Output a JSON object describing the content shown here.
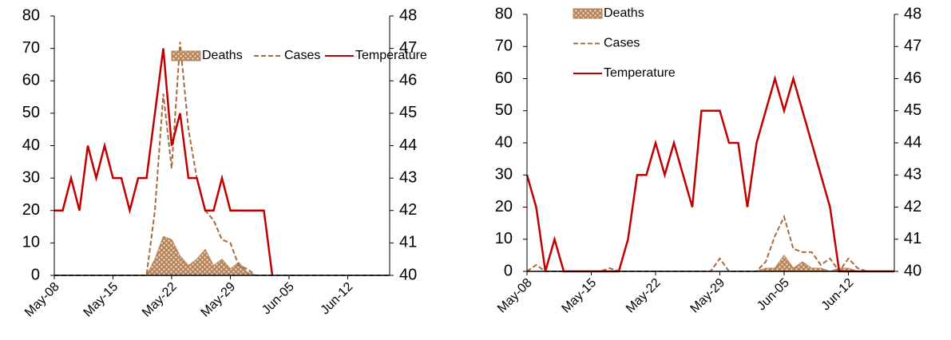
{
  "chart_data": [
    {
      "type": "line",
      "legend": "top",
      "categories": [
        "May-08",
        null,
        null,
        null,
        null,
        null,
        null,
        "May-15",
        null,
        null,
        null,
        null,
        null,
        null,
        "May-22",
        null,
        null,
        null,
        null,
        null,
        null,
        "May-29",
        null,
        null,
        null,
        null,
        null,
        null,
        "Jun-05",
        null,
        null,
        null,
        null,
        null,
        null,
        "Jun-12",
        null,
        null,
        null,
        null,
        null
      ],
      "ylim": [
        0,
        80
      ],
      "yticks": [
        0,
        10,
        20,
        30,
        40,
        50,
        60,
        70,
        80
      ],
      "y2lim": [
        40,
        48
      ],
      "y2ticks": [
        40,
        41,
        42,
        43,
        44,
        45,
        46,
        47,
        48
      ],
      "series": [
        {
          "name": "Deaths",
          "kind": "area",
          "color": "#b5835a",
          "values": [
            0,
            0,
            0,
            0,
            0,
            0,
            0,
            0,
            0,
            0,
            0,
            0,
            5,
            12,
            11,
            6,
            3,
            5,
            8,
            3,
            5,
            2,
            4,
            1,
            0,
            0,
            0,
            0,
            0,
            0,
            0,
            0,
            0,
            0,
            0,
            0,
            0,
            0,
            0,
            0,
            0
          ]
        },
        {
          "name": "Cases",
          "kind": "dashed",
          "color": "#a86b3c",
          "values": [
            0,
            0,
            0,
            0,
            0,
            0,
            0,
            0,
            0,
            0,
            0,
            0,
            20,
            56,
            33,
            72,
            45,
            30,
            20,
            17,
            11,
            10,
            3,
            2,
            0,
            0,
            0,
            0,
            0,
            0,
            0,
            0,
            0,
            0,
            0,
            0,
            0,
            0,
            0,
            0,
            0
          ]
        },
        {
          "name": "Temperature",
          "kind": "solid",
          "color": "#c00000",
          "axis": "y2",
          "values": [
            42,
            42,
            43,
            42,
            44,
            43,
            44,
            43,
            43,
            42,
            43,
            43,
            45,
            47,
            44,
            45,
            43,
            43,
            42,
            42,
            43,
            42,
            42,
            42,
            42,
            42,
            40,
            null,
            null,
            null,
            null,
            null,
            null,
            null,
            null,
            null,
            null,
            null,
            null,
            null,
            null
          ]
        }
      ]
    },
    {
      "type": "line",
      "legend": "top-left",
      "categories": [
        "May-08",
        null,
        null,
        null,
        null,
        null,
        null,
        "May-15",
        null,
        null,
        null,
        null,
        null,
        null,
        "May-22",
        null,
        null,
        null,
        null,
        null,
        null,
        "May-29",
        null,
        null,
        null,
        null,
        null,
        null,
        "Jun-05",
        null,
        null,
        null,
        null,
        null,
        null,
        "Jun-12",
        null,
        null,
        null,
        null,
        null
      ],
      "ylim": [
        0,
        80
      ],
      "yticks": [
        0,
        10,
        20,
        30,
        40,
        50,
        60,
        70,
        80
      ],
      "y2lim": [
        40,
        48
      ],
      "y2ticks": [
        40,
        41,
        42,
        43,
        44,
        45,
        46,
        47,
        48
      ],
      "series": [
        {
          "name": "Deaths",
          "kind": "area",
          "color": "#b5835a",
          "values": [
            0,
            0,
            0,
            0,
            0,
            0,
            0,
            0,
            0,
            0,
            0,
            0,
            0,
            0,
            0,
            0,
            0,
            0,
            0,
            0,
            0,
            0,
            0,
            0,
            0,
            0,
            1,
            1,
            5,
            1,
            3,
            1,
            1,
            0,
            1,
            1,
            0,
            0,
            0,
            0,
            0
          ]
        },
        {
          "name": "Cases",
          "kind": "dashed",
          "color": "#a86b3c",
          "values": [
            0,
            2,
            0,
            0,
            0,
            0,
            0,
            0,
            0,
            1,
            0,
            0,
            0,
            0,
            0,
            0,
            0,
            0,
            0,
            0,
            0,
            4,
            0,
            0,
            0,
            0,
            3,
            11,
            17,
            7,
            6,
            6,
            2,
            4,
            0,
            4,
            1,
            0,
            0,
            0,
            0
          ]
        },
        {
          "name": "Temperature",
          "kind": "solid",
          "color": "#c00000",
          "axis": "y2",
          "values": [
            43,
            42,
            40,
            41,
            40,
            40,
            40,
            40,
            40,
            40,
            40,
            41,
            43,
            43,
            44,
            43,
            44,
            43,
            42,
            45,
            45,
            45,
            44,
            44,
            42,
            44,
            45,
            46,
            45,
            46,
            45,
            44,
            43,
            42,
            40,
            40,
            40,
            40,
            40,
            40,
            40
          ]
        }
      ]
    }
  ]
}
